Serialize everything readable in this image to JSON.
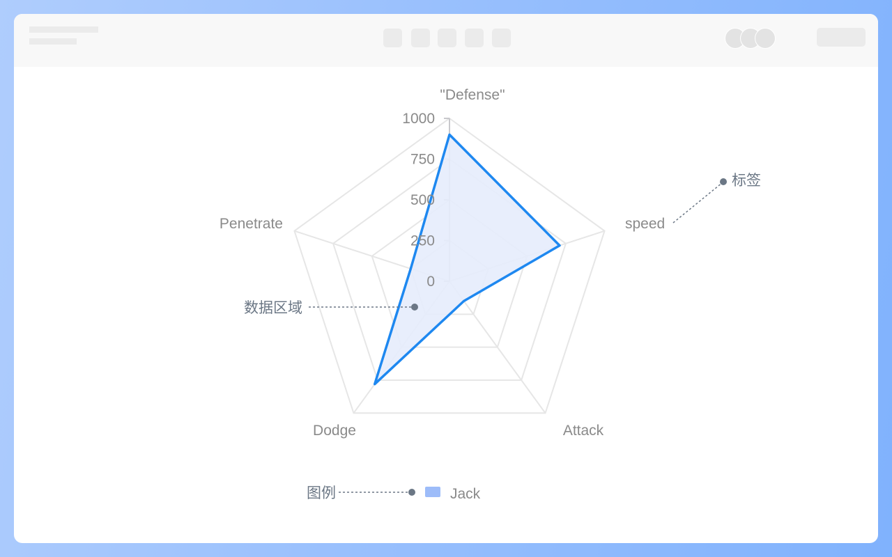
{
  "chart_data": {
    "type": "radar",
    "indicators": [
      "\"Defense\"",
      "speed",
      "Attack",
      "Dodge",
      "Penetrate"
    ],
    "max": 1000,
    "ticks": [
      "0",
      "250",
      "500",
      "750",
      "1000"
    ],
    "series": [
      {
        "name": "Jack",
        "values": [
          900,
          710,
          150,
          780,
          250
        ],
        "color": "#1e88f0",
        "fill": "#e5ecfc"
      }
    ],
    "legend": {
      "position": "bottom",
      "swatch_color": "#9dbcf9"
    }
  },
  "annotations": {
    "label": "标签",
    "data_area": "数据区域",
    "legend": "图例"
  },
  "colors": {
    "grid": "#e6e6e6",
    "annotation": "#6b7785",
    "text": "#8a8a8a"
  }
}
